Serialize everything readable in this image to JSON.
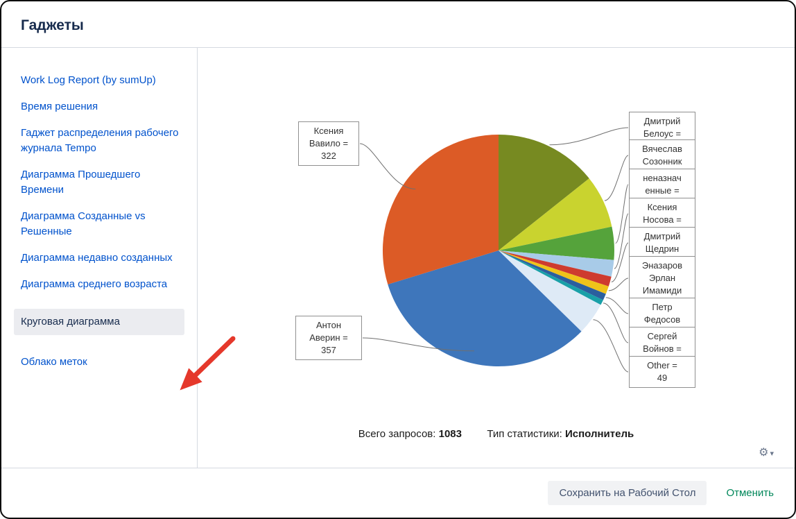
{
  "dialog": {
    "title": "Гаджеты",
    "footer": {
      "save_label": "Сохранить на Рабочий Стол",
      "cancel_label": "Отменить"
    }
  },
  "sidebar": {
    "items": [
      {
        "label": "Work Log Report (by sumUp)",
        "selected": false
      },
      {
        "label": "Время решения",
        "selected": false
      },
      {
        "label": "Гаджет распределения рабочего журнала Tempo",
        "selected": false
      },
      {
        "label": "Диаграмма Прошедшего Времени",
        "selected": false
      },
      {
        "label": "Диаграмма Созданные vs Решенные",
        "selected": false
      },
      {
        "label": "Диаграмма недавно созданных",
        "selected": false
      },
      {
        "label": "Диаграмма среднего возраста",
        "selected": false
      },
      {
        "label": "Круговая диаграмма",
        "selected": true
      },
      {
        "label": "Облако меток",
        "selected": false
      }
    ]
  },
  "chart_data": {
    "type": "pie",
    "total_label": "Всего запросов:",
    "total_value": "1083",
    "stat_type_label": "Тип статистики:",
    "stat_type_value": "Исполнитель",
    "slices": [
      {
        "label": "Дмитрий Белоус",
        "value": 155,
        "color": "#778A21"
      },
      {
        "label": "Вячеслав Созонник",
        "value": 80,
        "color": "#C9D32F"
      },
      {
        "label": "неназначенные",
        "value": 50,
        "color": "#55A33B"
      },
      {
        "label": "Ксения Носова",
        "value": 25,
        "color": "#A8CBE8"
      },
      {
        "label": "Дмитрий Щедрин",
        "value": 15,
        "color": "#CE3B2F"
      },
      {
        "label": "Эназаров Эрлан Имамиди",
        "value": 12,
        "color": "#EFC31A"
      },
      {
        "label": "Петр Федосов",
        "value": 10,
        "color": "#2B5F9E"
      },
      {
        "label": "Сергей Войнов",
        "value": 8,
        "color": "#19A0A8"
      },
      {
        "label": "Other",
        "value": 49,
        "color": "#DEEAF6"
      },
      {
        "label": "Антон Аверин",
        "value": 357,
        "color": "#3E76BB"
      },
      {
        "label": "Ксения Вавило",
        "value": 322,
        "color": "#DC5B26"
      }
    ],
    "callouts": [
      {
        "slice": 10,
        "side": "left",
        "lines": [
          "Ксения",
          "Вавило =",
          "322"
        ]
      },
      {
        "slice": 9,
        "side": "left",
        "lines": [
          "Антон",
          "Аверин =",
          "357"
        ]
      },
      {
        "slice": 0,
        "side": "right",
        "lines": [
          "Дмитрий",
          "Белоус ="
        ]
      },
      {
        "slice": 1,
        "side": "right",
        "lines": [
          "Вячеслав",
          "Созонник"
        ]
      },
      {
        "slice": 2,
        "side": "right",
        "lines": [
          "неназнач",
          "енные ="
        ]
      },
      {
        "slice": 3,
        "side": "right",
        "lines": [
          "Ксения",
          "Носова ="
        ]
      },
      {
        "slice": 4,
        "side": "right",
        "lines": [
          "Дмитрий",
          "Щедрин"
        ]
      },
      {
        "slice": 5,
        "side": "right",
        "lines": [
          "Эназаров",
          "Эрлан",
          "Имамиди"
        ]
      },
      {
        "slice": 6,
        "side": "right",
        "lines": [
          "Петр",
          "Федосов"
        ]
      },
      {
        "slice": 7,
        "side": "right",
        "lines": [
          "Сергей",
          "Войнов ="
        ]
      },
      {
        "slice": 8,
        "side": "right",
        "lines": [
          "Other =",
          "49"
        ]
      }
    ],
    "legend_position": "callouts",
    "grid": false
  },
  "colors": {
    "link": "#0052CC",
    "title": "#172B4D",
    "selected_bg": "#EBECF0",
    "cancel_link": "#00875A",
    "arrow": "#E5382B"
  },
  "icons": {
    "gear": "gear-icon",
    "caret": "chevron-down-icon"
  }
}
